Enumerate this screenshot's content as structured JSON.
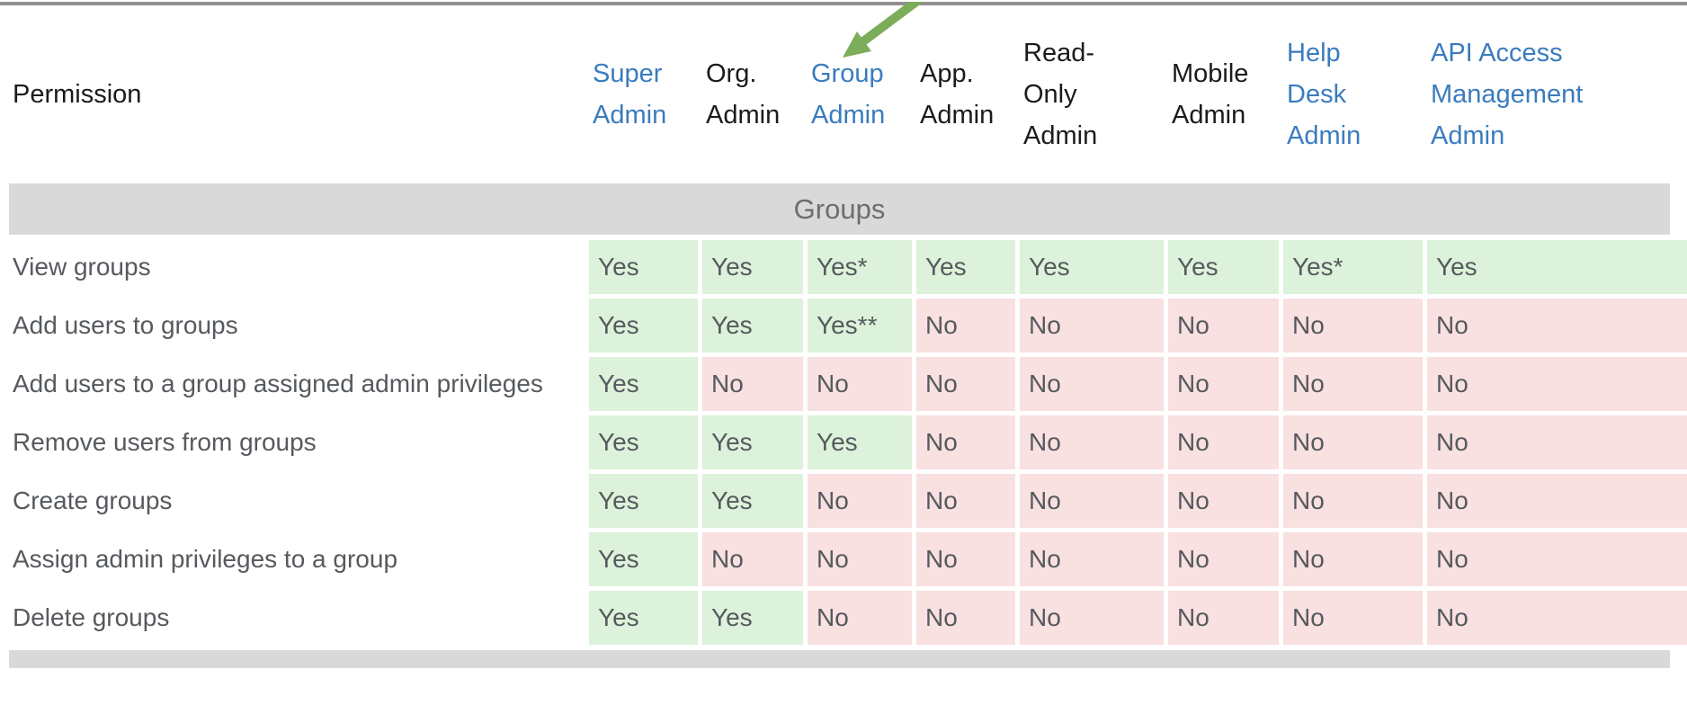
{
  "table": {
    "permission_header": "Permission",
    "section_title": "Groups",
    "columns": [
      {
        "label": "Super Admin",
        "lines": [
          "Super",
          "Admin"
        ],
        "link": true
      },
      {
        "label": "Org. Admin",
        "lines": [
          "Org.",
          "Admin"
        ],
        "link": false
      },
      {
        "label": "Group Admin",
        "lines": [
          "Group",
          "Admin"
        ],
        "link": true
      },
      {
        "label": "App. Admin",
        "lines": [
          "App.",
          "Admin"
        ],
        "link": false
      },
      {
        "label": "Read-Only Admin",
        "lines": [
          "Read-",
          "Only",
          "Admin"
        ],
        "link": false
      },
      {
        "label": "Mobile Admin",
        "lines": [
          "Mobile",
          "Admin"
        ],
        "link": false
      },
      {
        "label": "Help Desk Admin",
        "lines": [
          "Help",
          "Desk",
          "Admin"
        ],
        "link": true
      },
      {
        "label": "API Access Management Admin",
        "lines": [
          "API Access",
          "Management",
          "Admin"
        ],
        "link": true
      }
    ],
    "rows": [
      {
        "permission": "View groups",
        "values": [
          "Yes",
          "Yes",
          "Yes*",
          "Yes",
          "Yes",
          "Yes",
          "Yes*",
          "Yes"
        ]
      },
      {
        "permission": "Add users to groups",
        "values": [
          "Yes",
          "Yes",
          "Yes**",
          "No",
          "No",
          "No",
          "No",
          "No"
        ]
      },
      {
        "permission": "Add users to a group assigned admin privileges",
        "values": [
          "Yes",
          "No",
          "No",
          "No",
          "No",
          "No",
          "No",
          "No"
        ]
      },
      {
        "permission": "Remove users from groups",
        "values": [
          "Yes",
          "Yes",
          "Yes",
          "No",
          "No",
          "No",
          "No",
          "No"
        ]
      },
      {
        "permission": "Create groups",
        "values": [
          "Yes",
          "Yes",
          "No",
          "No",
          "No",
          "No",
          "No",
          "No"
        ]
      },
      {
        "permission": "Assign admin privileges to a group",
        "values": [
          "Yes",
          "No",
          "No",
          "No",
          "No",
          "No",
          "No",
          "No"
        ]
      },
      {
        "permission": "Delete groups",
        "values": [
          "Yes",
          "Yes",
          "No",
          "No",
          "No",
          "No",
          "No",
          "No"
        ]
      }
    ]
  },
  "colors": {
    "yes_bg": "#dcf2da",
    "no_bg": "#f9e0e1",
    "section_bg": "#d9d9d9",
    "link_blue": "#3a7cbe",
    "arrow_green": "#7cad5a"
  },
  "annotation": {
    "arrow_target": "Group Admin"
  }
}
